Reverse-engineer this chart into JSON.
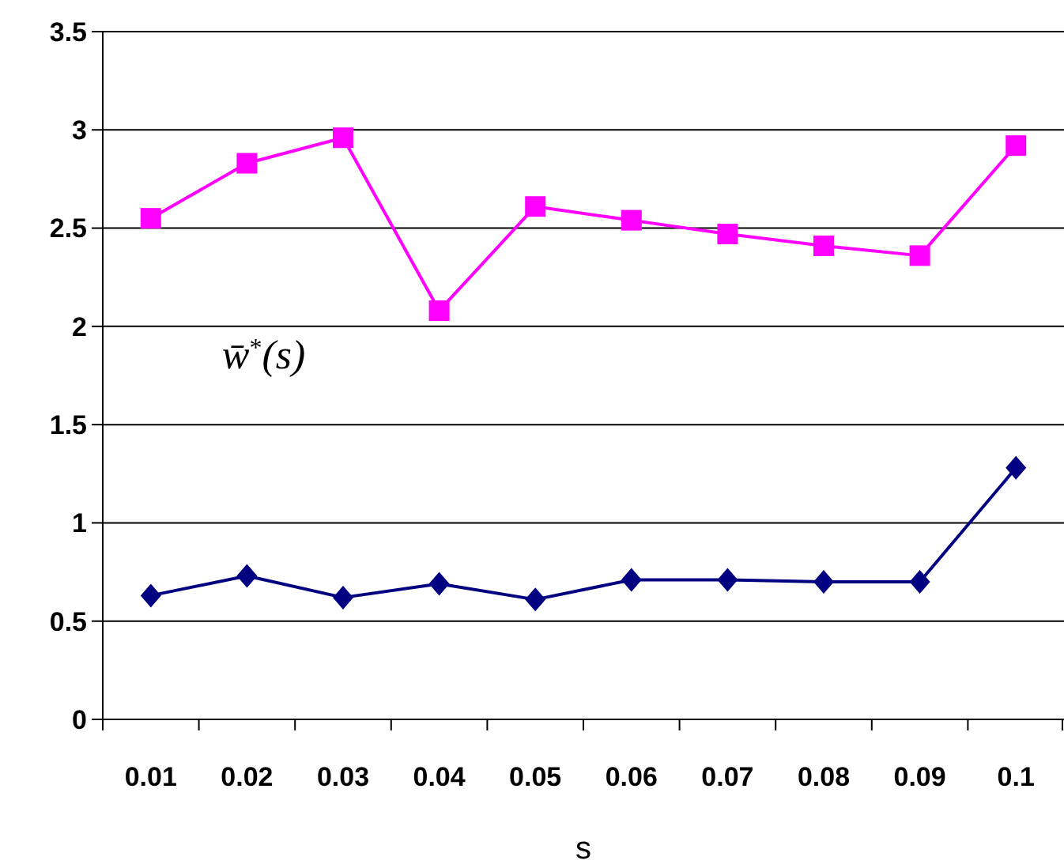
{
  "chart_data": {
    "type": "line",
    "xlabel": "s",
    "categories": [
      "0.01",
      "0.02",
      "0.03",
      "0.04",
      "0.05",
      "0.06",
      "0.07",
      "0.08",
      "0.09",
      "0.1"
    ],
    "series": [
      {
        "name": "w̄$^{*}$(s)",
        "color": "#ff00ff",
        "marker": "square",
        "values": [
          2.55,
          2.83,
          2.96,
          2.08,
          2.61,
          2.54,
          2.47,
          2.41,
          2.36,
          2.92
        ]
      },
      {
        "color": "#000080",
        "marker": "diamond",
        "values": [
          0.63,
          0.73,
          0.62,
          0.69,
          0.61,
          0.71,
          0.71,
          0.7,
          0.7,
          1.28
        ]
      }
    ],
    "ylim": [
      0,
      3.5
    ],
    "yticks": [
      0,
      0.5,
      1,
      1.5,
      2,
      2.5,
      3,
      3.5
    ],
    "grid": "y"
  }
}
